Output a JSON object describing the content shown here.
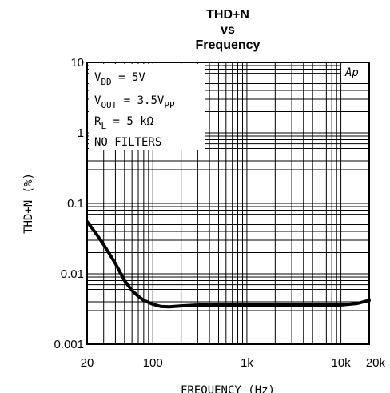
{
  "chart_data": {
    "type": "line",
    "title_lines": [
      "THD+N",
      "vs",
      "Frequency"
    ],
    "xlabel": "FREQUENCY (Hz)",
    "ylabel": "THD+N (%)",
    "x_scale": "log",
    "y_scale": "log",
    "xlim": [
      20,
      20000
    ],
    "ylim": [
      0.001,
      10
    ],
    "x_ticks": [
      {
        "value": 20,
        "label": "20"
      },
      {
        "value": 100,
        "label": "100"
      },
      {
        "value": 1000,
        "label": "1k"
      },
      {
        "value": 10000,
        "label": "10k"
      },
      {
        "value": 20000,
        "label": "20k"
      }
    ],
    "y_ticks": [
      {
        "value": 10,
        "label": "10"
      },
      {
        "value": 1,
        "label": "1"
      },
      {
        "value": 0.1,
        "label": "0.1"
      },
      {
        "value": 0.01,
        "label": "0.01"
      },
      {
        "value": 0.001,
        "label": "0.001"
      }
    ],
    "grid": true,
    "annotations": {
      "vdd": {
        "main": "V",
        "sub": "DD",
        "rest": " = 5V"
      },
      "vout": {
        "main": "V",
        "sub": "OUT",
        "mid": " = 3.5V",
        "sub2": "PP"
      },
      "rl": {
        "main": "R",
        "sub": "L",
        "rest": " = 5 kΩ"
      },
      "filters": "NO FILTERS",
      "logo": "Ap"
    },
    "series": [
      {
        "x": [
          20,
          25,
          30,
          40,
          50,
          60,
          70,
          80,
          100,
          120,
          150,
          200,
          300,
          500,
          1000,
          2000,
          5000,
          10000,
          15000,
          20000
        ],
        "y": [
          0.055,
          0.037,
          0.026,
          0.014,
          0.008,
          0.0058,
          0.0048,
          0.0042,
          0.0037,
          0.00345,
          0.0034,
          0.0035,
          0.0036,
          0.0036,
          0.0036,
          0.0036,
          0.0036,
          0.0036,
          0.0038,
          0.0042
        ]
      }
    ]
  }
}
